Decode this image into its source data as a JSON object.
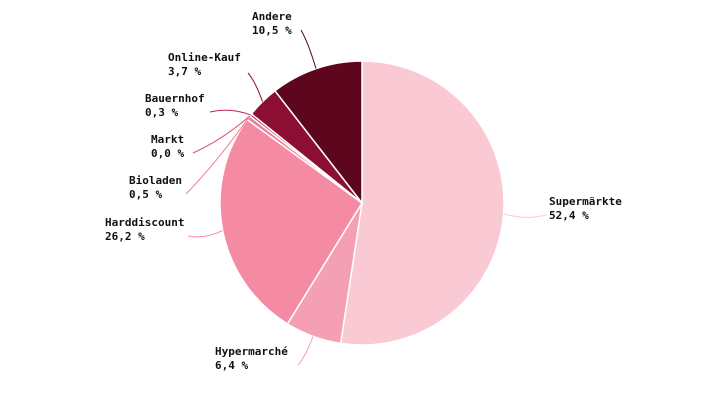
{
  "chart_data": {
    "type": "pie",
    "start_angle_deg": 0,
    "direction": "clockwise",
    "slices": [
      {
        "label": "Supermärkte",
        "value": 52.4,
        "value_label": "52,4 %",
        "color": "#f9c9d4"
      },
      {
        "label": "Hypermarché",
        "value": 6.4,
        "value_label": "6,4 %",
        "color": "#f59fb4"
      },
      {
        "label": "Harddiscount",
        "value": 26.2,
        "value_label": "26,2 %",
        "color": "#f58aa3"
      },
      {
        "label": "Bioladen",
        "value": 0.5,
        "value_label": "0,5 %",
        "color": "#ee7d99"
      },
      {
        "label": "Markt",
        "value": 0.0,
        "value_label": "0,0 %",
        "color": "#d34d73"
      },
      {
        "label": "Bauernhof",
        "value": 0.3,
        "value_label": "0,3 %",
        "color": "#b82a52"
      },
      {
        "label": "Online-Kauf",
        "value": 3.7,
        "value_label": "3,7 %",
        "color": "#8c0f33"
      },
      {
        "label": "Andere",
        "value": 10.5,
        "value_label": "10,5 %",
        "color": "#5e061e"
      }
    ]
  }
}
